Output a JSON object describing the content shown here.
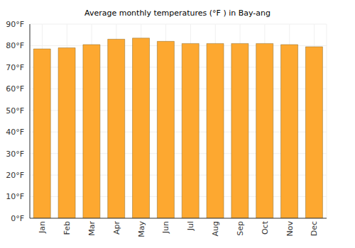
{
  "chart_data": {
    "type": "bar",
    "title": "Average monthly temperatures (°F ) in Bay-ang",
    "categories": [
      "Jan",
      "Feb",
      "Mar",
      "Apr",
      "May",
      "Jun",
      "Jul",
      "Aug",
      "Sep",
      "Oct",
      "Nov",
      "Dec"
    ],
    "values": [
      78.5,
      79,
      80.5,
      83,
      83.5,
      82,
      81,
      81,
      81,
      81,
      80.5,
      79.5
    ],
    "color": "#fda830",
    "ylim": [
      0,
      90
    ],
    "yticks": [
      {
        "value": 0,
        "label": "0°F"
      },
      {
        "value": 10,
        "label": "10°F"
      },
      {
        "value": 20,
        "label": "20°F"
      },
      {
        "value": 30,
        "label": "30°F"
      },
      {
        "value": 40,
        "label": "40°F"
      },
      {
        "value": 50,
        "label": "50°F"
      },
      {
        "value": 60,
        "label": "60°F"
      },
      {
        "value": 70,
        "label": "70°F"
      },
      {
        "value": 80,
        "label": "80°F"
      },
      {
        "value": 90,
        "label": "90°F"
      }
    ],
    "grid": true
  }
}
